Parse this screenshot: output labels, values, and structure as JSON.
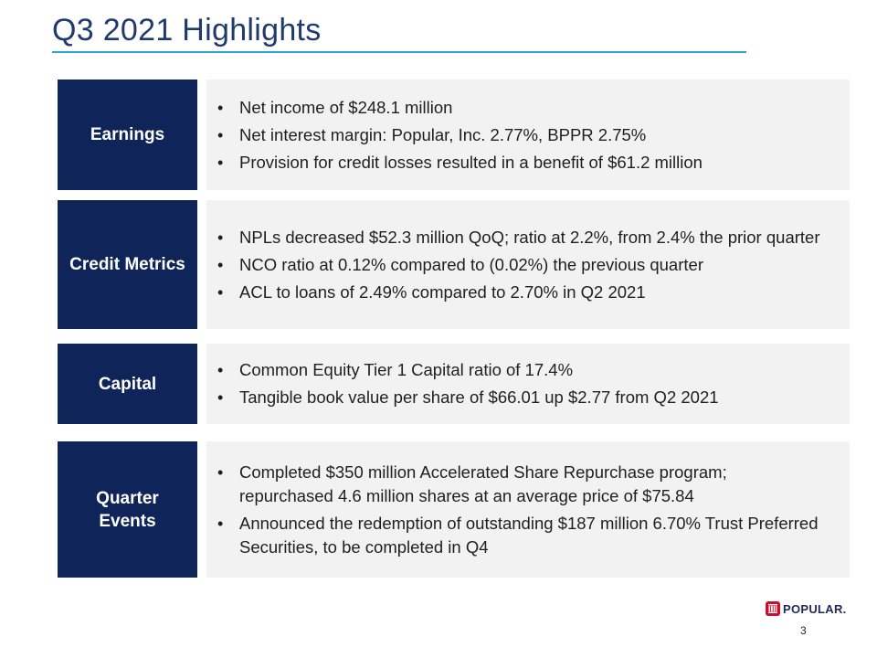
{
  "title": "Q3 2021 Highlights",
  "sections": [
    {
      "label": "Earnings",
      "bullets": [
        "Net income of $248.1 million",
        "Net interest margin: Popular, Inc. 2.77%, BPPR 2.75%",
        "Provision for credit losses resulted in a benefit of $61.2 million"
      ]
    },
    {
      "label": "Credit Metrics",
      "bullets": [
        "NPLs decreased $52.3 million QoQ; ratio at 2.2%, from 2.4% the prior quarter",
        "NCO ratio at 0.12% compared to (0.02%) the previous quarter",
        "ACL to loans of 2.49% compared to 2.70% in Q2 2021"
      ]
    },
    {
      "label": "Capital",
      "bullets": [
        "Common Equity Tier 1 Capital ratio of 17.4%",
        "Tangible book value per share of $66.01 up $2.77 from Q2 2021"
      ]
    },
    {
      "label": "Quarter Events",
      "bullets": [
        "Completed $350 million Accelerated Share Repurchase program; repurchased 4.6 million shares at an average price of $75.84",
        "Announced the redemption of outstanding $187 million 6.70% Trust Preferred Securities, to be completed in Q4"
      ]
    }
  ],
  "logo": {
    "text": "POPULAR.",
    "icon": "popular-logo-icon",
    "color": "#c8102e"
  },
  "page_number": "3",
  "colors": {
    "title": "#1f3a6e",
    "rule": "#2aa6c8",
    "label_bg": "#0f2458",
    "content_bg": "#f2f2f2"
  }
}
